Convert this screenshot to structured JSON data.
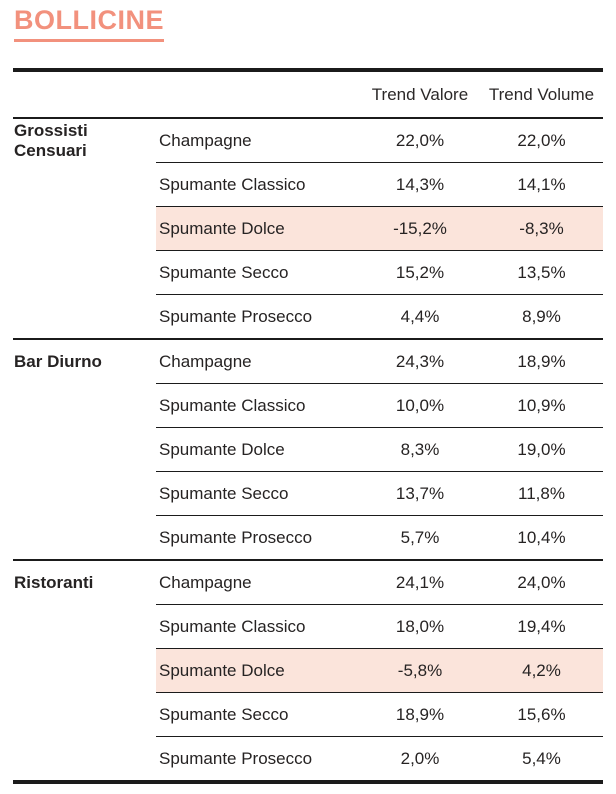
{
  "title": "BOLLICINE",
  "colors": {
    "accent": "#F2917D",
    "highlight": "#FBE4DB",
    "text": "#262323",
    "rule": "#1B1B1B"
  },
  "table": {
    "headers": {
      "valore": "Trend Valore",
      "volume": "Trend Volume"
    },
    "groups": [
      {
        "label": "Grossisti Censuari",
        "rows": [
          {
            "product": "Champagne",
            "valore": "22,0%",
            "volume": "22,0%",
            "highlight": false
          },
          {
            "product": "Spumante Classico",
            "valore": "14,3%",
            "volume": "14,1%",
            "highlight": false
          },
          {
            "product": "Spumante Dolce",
            "valore": "-15,2%",
            "volume": "-8,3%",
            "highlight": true
          },
          {
            "product": "Spumante Secco",
            "valore": "15,2%",
            "volume": "13,5%",
            "highlight": false
          },
          {
            "product": "Spumante Prosecco",
            "valore": "4,4%",
            "volume": "8,9%",
            "highlight": false
          }
        ]
      },
      {
        "label": "Bar Diurno",
        "rows": [
          {
            "product": "Champagne",
            "valore": "24,3%",
            "volume": "18,9%",
            "highlight": false
          },
          {
            "product": "Spumante Classico",
            "valore": "10,0%",
            "volume": "10,9%",
            "highlight": false
          },
          {
            "product": "Spumante Dolce",
            "valore": "8,3%",
            "volume": "19,0%",
            "highlight": false
          },
          {
            "product": "Spumante Secco",
            "valore": "13,7%",
            "volume": "11,8%",
            "highlight": false
          },
          {
            "product": "Spumante Prosecco",
            "valore": "5,7%",
            "volume": "10,4%",
            "highlight": false
          }
        ]
      },
      {
        "label": "Ristoranti",
        "rows": [
          {
            "product": "Champagne",
            "valore": "24,1%",
            "volume": "24,0%",
            "highlight": false
          },
          {
            "product": "Spumante Classico",
            "valore": "18,0%",
            "volume": "19,4%",
            "highlight": false
          },
          {
            "product": "Spumante Dolce",
            "valore": "-5,8%",
            "volume": "4,2%",
            "highlight": true
          },
          {
            "product": "Spumante Secco",
            "valore": "18,9%",
            "volume": "15,6%",
            "highlight": false
          },
          {
            "product": "Spumante Prosecco",
            "valore": "2,0%",
            "volume": "5,4%",
            "highlight": false
          }
        ]
      }
    ]
  }
}
